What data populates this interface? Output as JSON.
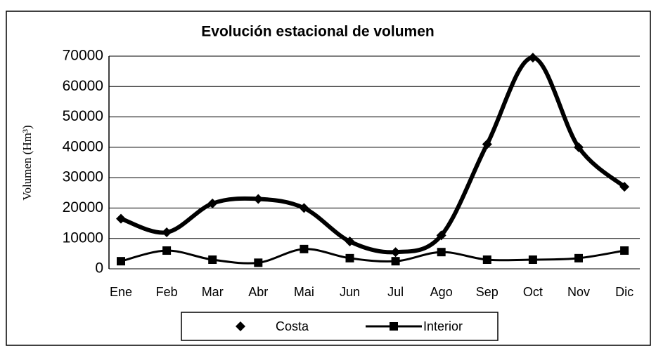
{
  "chart_data": {
    "type": "line",
    "title": "Evolución estacional de volumen",
    "y_label": "Volumen (Hm³)",
    "categories": [
      "Ene",
      "Feb",
      "Mar",
      "Abr",
      "Mai",
      "Jun",
      "Jul",
      "Ago",
      "Sep",
      "Oct",
      "Nov",
      "Dic"
    ],
    "series": [
      {
        "name": "Costa",
        "color": "#000000",
        "marker": "diamond",
        "values": [
          16500,
          12000,
          21500,
          23000,
          20000,
          9000,
          5500,
          11000,
          41000,
          69500,
          40000,
          27000
        ]
      },
      {
        "name": "Interior",
        "color": "#000000",
        "marker": "square",
        "values": [
          2500,
          6000,
          3000,
          2000,
          6500,
          3500,
          2500,
          5500,
          3000,
          3000,
          3500,
          6000
        ]
      }
    ],
    "ylim": [
      0,
      70000
    ],
    "yticks": [
      0,
      10000,
      20000,
      30000,
      40000,
      50000,
      60000,
      70000
    ],
    "grid": true,
    "smooth": true,
    "legend": "bottom"
  }
}
